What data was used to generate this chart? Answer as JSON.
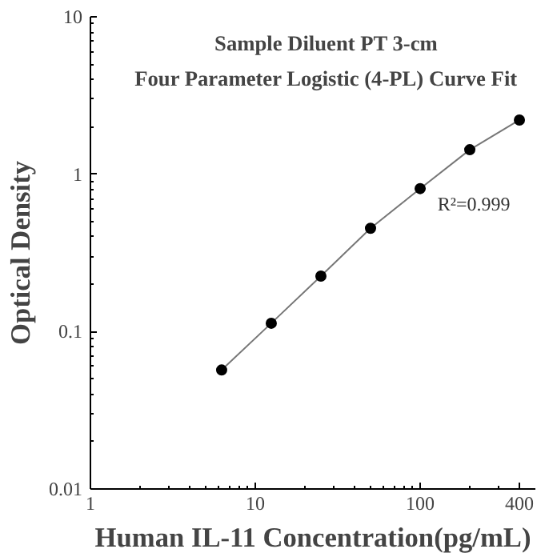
{
  "chart_data": {
    "type": "scatter",
    "title": "Sample Diluent PT 3-cm\nFour Parameter Logistic (4-PL) Curve Fit",
    "xlabel": "Human IL-11 Concentration(pg/mL)",
    "ylabel": "Optical Density",
    "x": [
      6.25,
      12.5,
      25,
      50,
      100,
      200,
      400
    ],
    "series": [
      {
        "type": "line",
        "color": "#777777",
        "values": [
          0.057,
          0.113,
          0.225,
          0.453,
          0.81,
          1.43,
          2.21
        ],
        "marker": "none"
      },
      {
        "color": "#000000",
        "values": [
          0.057,
          0.113,
          0.225,
          0.453,
          0.81,
          1.43,
          2.21
        ],
        "marker": "circle"
      }
    ],
    "log": "xy",
    "xlim": [
      1,
      500
    ],
    "ylim": [
      0.01,
      10
    ],
    "xticks": [
      1,
      10,
      100,
      400
    ],
    "yticks": [
      0.01,
      0.1,
      1,
      10
    ],
    "grid": false,
    "annotations": [
      "R²=0.999"
    ]
  }
}
